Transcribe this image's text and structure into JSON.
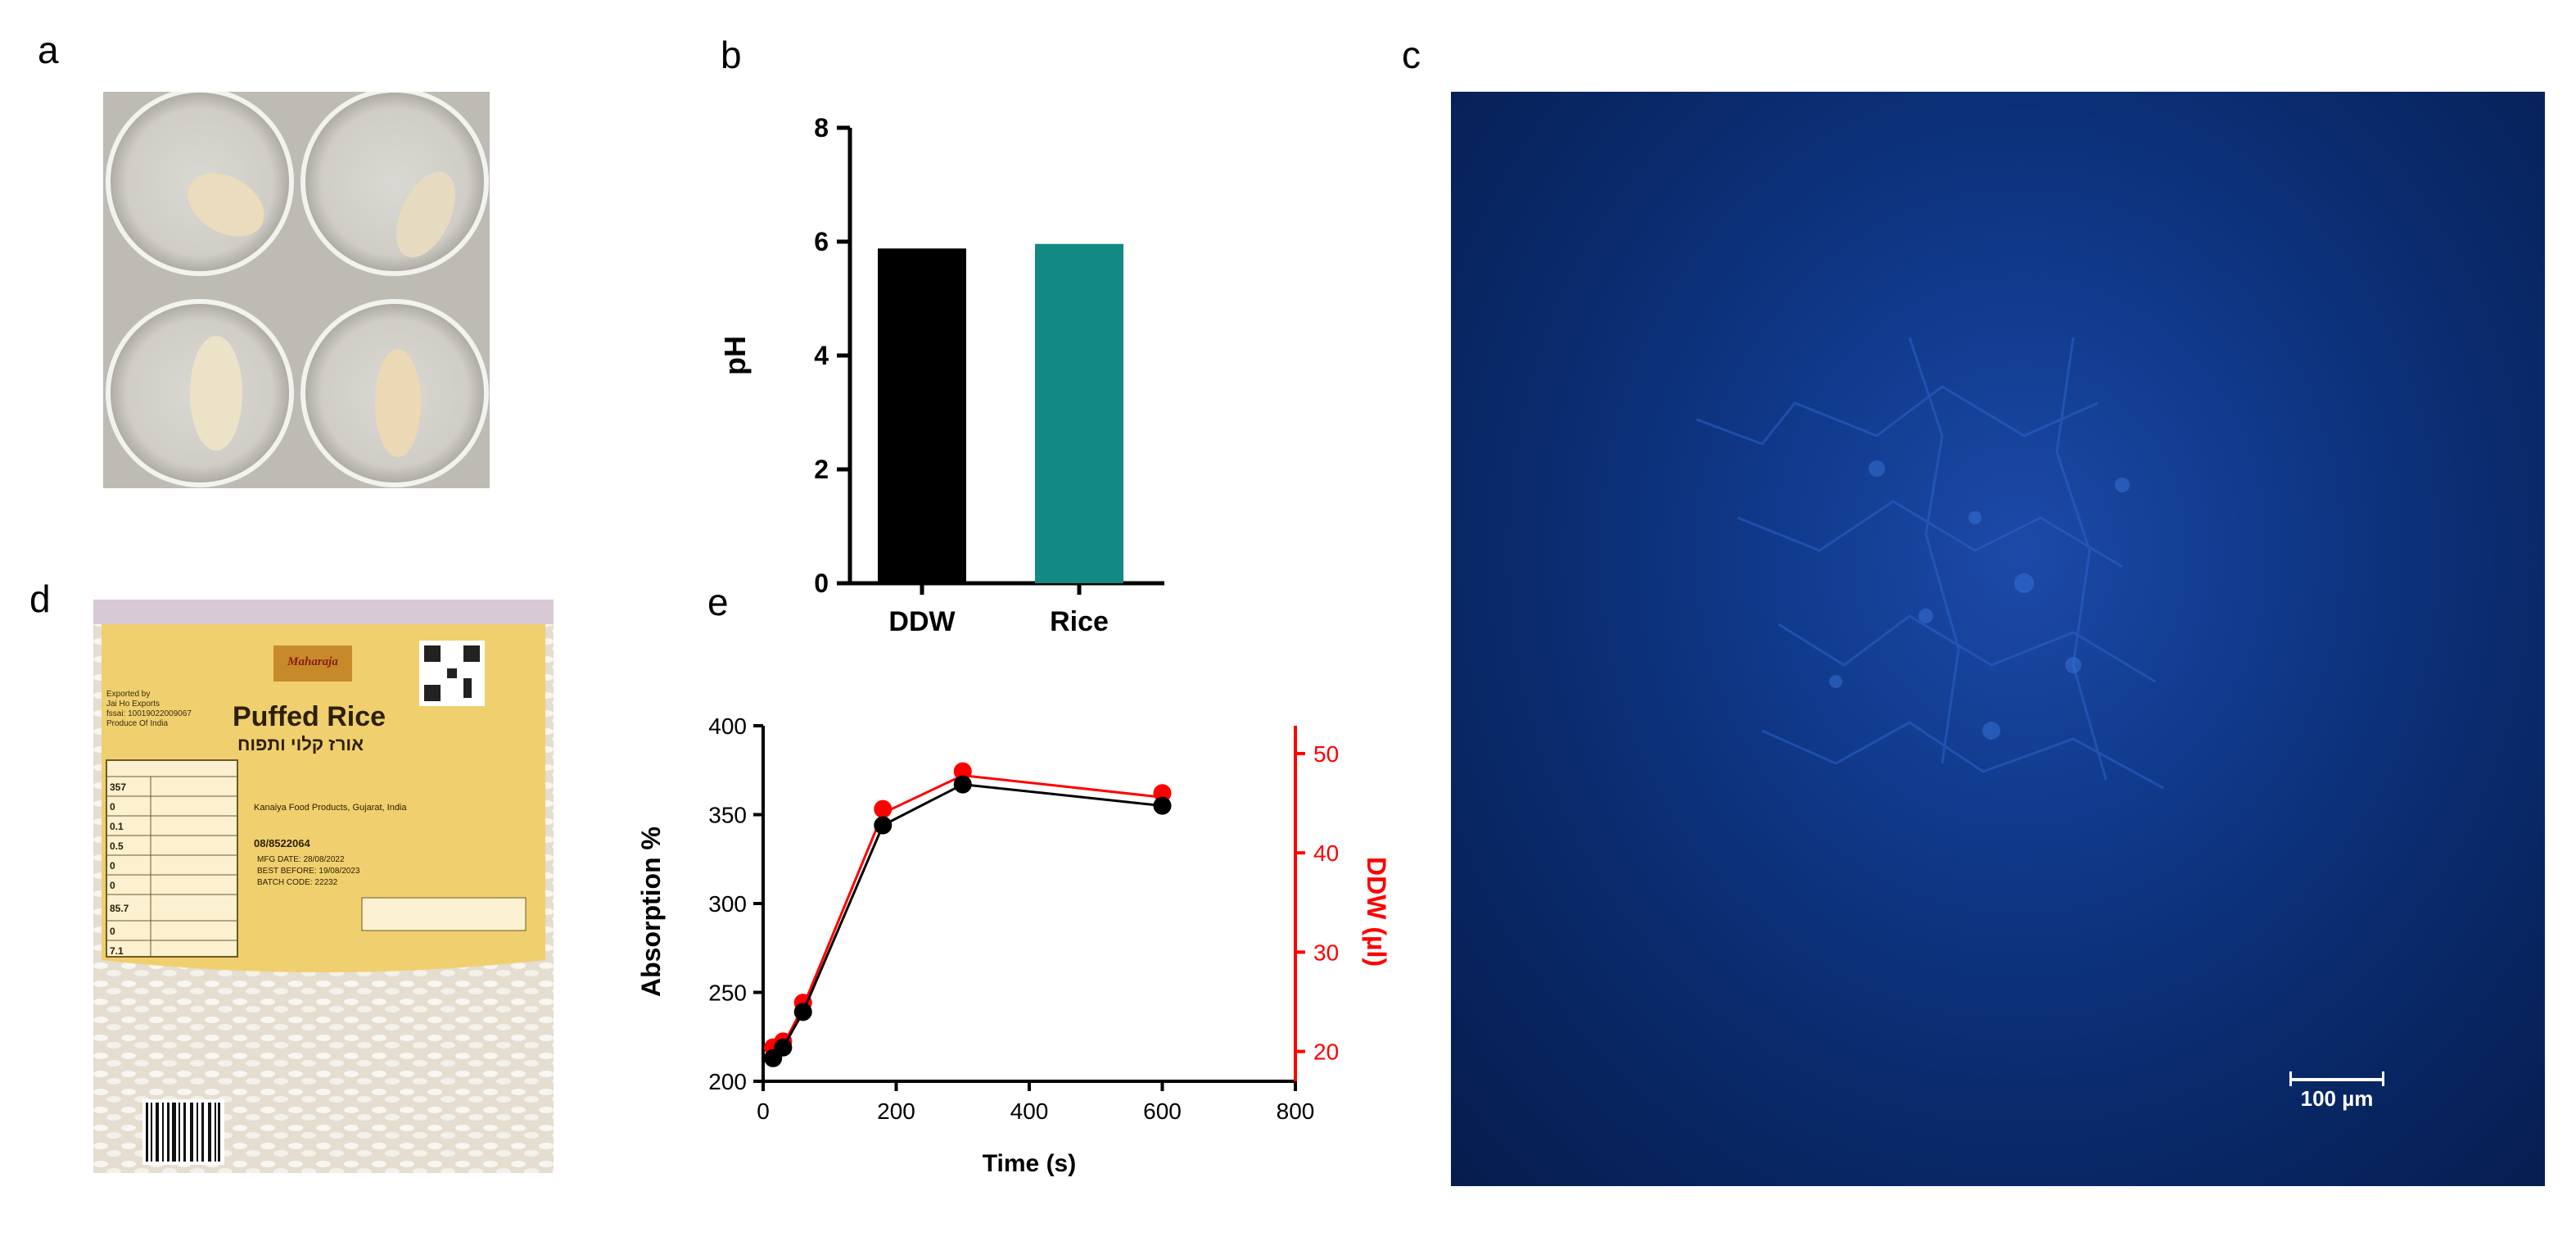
{
  "panels": {
    "a": "a",
    "b": "b",
    "c": "c",
    "d": "d",
    "e": "e"
  },
  "microscopy": {
    "scale_bar_label": "100 µm"
  },
  "rice_bag": {
    "brand": "Maharaja",
    "product": "Puffed Rice",
    "hebrew_title": "אורז קלוי ותפוח",
    "exporter": "Exported by\nJai Ho Exports\nfssai: 10019022009067\nProduce Of India",
    "manufacturer": "Kanaiya Food Products, Gujarat, India",
    "phone": "08/8522064",
    "mfg": "MFG DATE: 28/08/2022",
    "best_before": "BEST BEFORE: 19/08/2023",
    "batch": "BATCH CODE: 22232",
    "nutrition_values": [
      "357",
      "0",
      "0.1",
      "0.5",
      "0",
      "0",
      "85.7",
      "0",
      "7.1"
    ]
  },
  "chart_data": [
    {
      "type": "bar",
      "categories": [
        "DDW",
        "Rice"
      ],
      "values": [
        5.88,
        5.96
      ],
      "colors": [
        "#000000",
        "#128983"
      ],
      "title": "",
      "xlabel": "",
      "ylabel": "pH",
      "ylim": [
        0,
        8
      ],
      "yticks": [
        0,
        2,
        4,
        6,
        8
      ]
    },
    {
      "type": "line",
      "title": "",
      "xlabel": "Time (s)",
      "ylabel": "Absorption %",
      "y2label": "DDW (µl)",
      "xlim": [
        0,
        800
      ],
      "ylim": [
        200,
        400
      ],
      "y2lim": [
        17,
        52.8
      ],
      "xticks": [
        0,
        200,
        400,
        600,
        800
      ],
      "yticks": [
        200,
        250,
        300,
        350,
        400
      ],
      "y2ticks": [
        20,
        30,
        40,
        50
      ],
      "series": [
        {
          "axis": "left",
          "color": "#000000",
          "x": [
            15,
            30,
            60,
            180,
            300,
            600
          ],
          "y": [
            213,
            219,
            239,
            344,
            367,
            355
          ]
        },
        {
          "axis": "right",
          "color": "#ff0000",
          "x": [
            15,
            30,
            60,
            180,
            300,
            600
          ],
          "y": [
            20.0,
            20.6,
            24.5,
            44.0,
            47.8,
            45.6
          ]
        }
      ]
    }
  ]
}
